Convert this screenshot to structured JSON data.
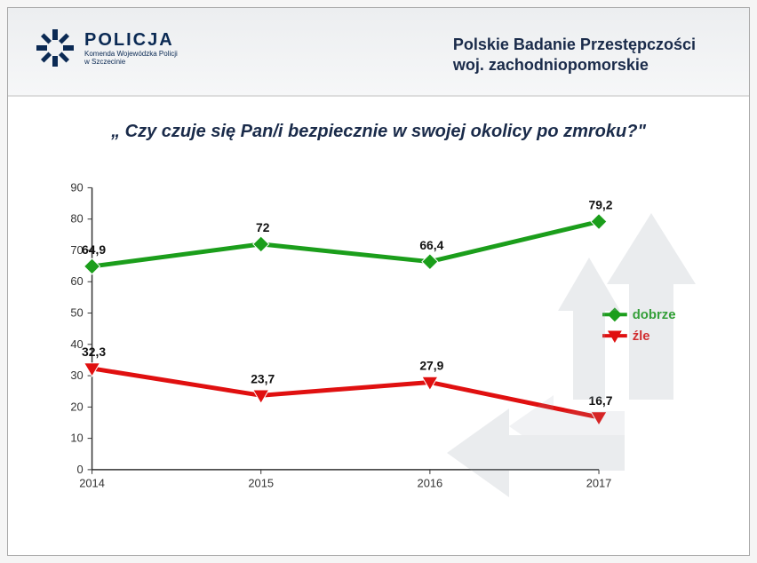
{
  "header": {
    "logo_main": "POLICJA",
    "logo_sub1": "Komenda Wojewódzka Policji",
    "logo_sub2": "w Szczecinie",
    "title_line1": "Polskie Badanie Przestępczości",
    "title_line2": "woj. zachodniopomorskie",
    "logo_color": "#0b2a54"
  },
  "question": "„ Czy czuje się Pan/i bezpiecznie w swojej okolicy po zmroku?\"",
  "chart": {
    "type": "line",
    "categories": [
      "2014",
      "2015",
      "2016",
      "2017"
    ],
    "ylim": [
      0,
      90
    ],
    "ytick_step": 10,
    "series": [
      {
        "name": "dobrze",
        "color": "#1b9e1b",
        "marker": "diamond",
        "values": [
          64.9,
          72,
          66.4,
          79.2
        ],
        "labels": [
          "64,9",
          "72",
          "66,4",
          "79,2"
        ]
      },
      {
        "name": "źle",
        "color": "#e01010",
        "marker": "triangle-down",
        "values": [
          32.3,
          23.7,
          27.9,
          16.7
        ],
        "labels": [
          "32,3",
          "23,7",
          "27,9",
          "16,7"
        ]
      }
    ],
    "line_width": 5,
    "marker_size": 9,
    "label_fontsize": 14,
    "axis_fontsize": 13,
    "axis_color": "#333333",
    "background_color": "#ffffff",
    "legend_position": "right",
    "bg_arrow_color": "#9aa5b0"
  }
}
